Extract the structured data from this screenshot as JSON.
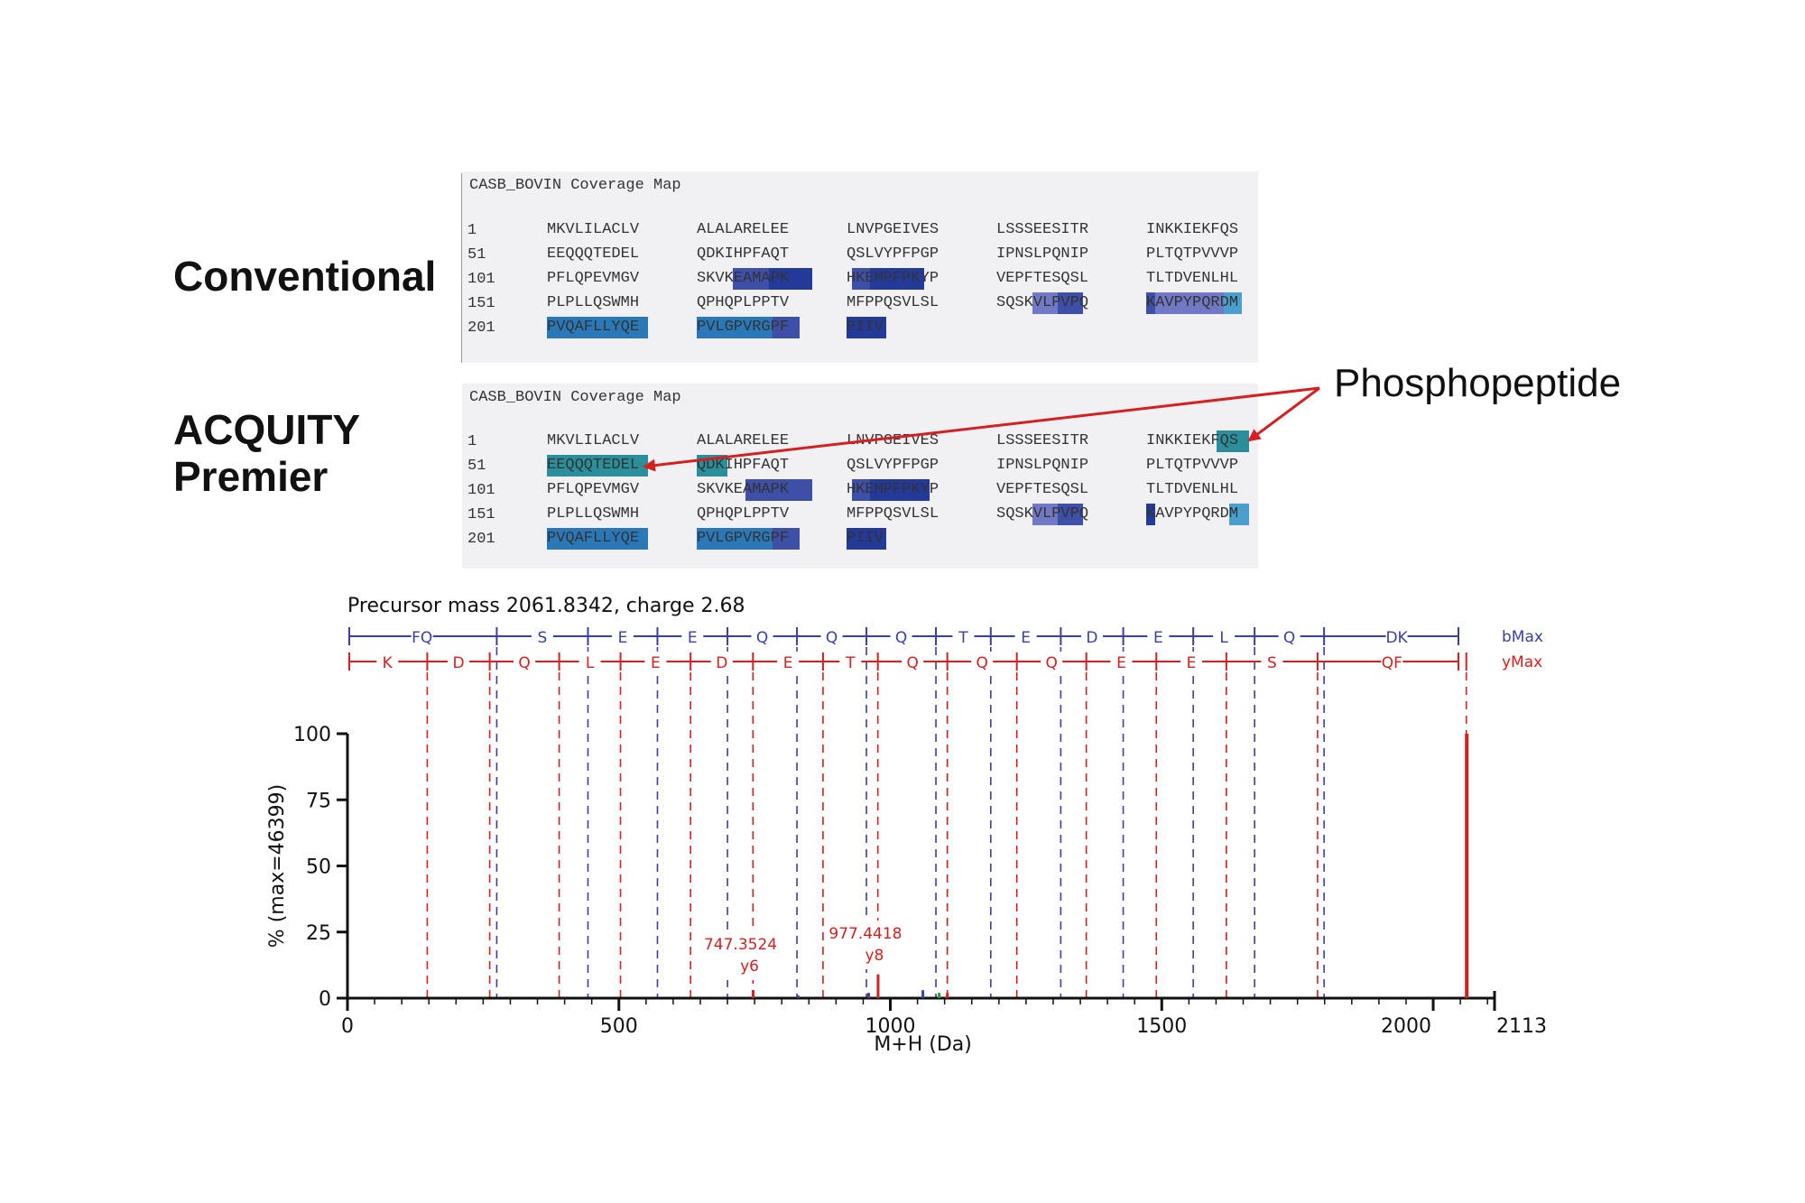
{
  "labels": {
    "conventional": "Conventional",
    "acquity_line1": "ACQUITY",
    "acquity_line2": "Premier",
    "phosphopeptide": "Phosphopeptide"
  },
  "coverage_maps": [
    {
      "title": "CASB_BOVIN Coverage Map",
      "rows": [
        {
          "num": "1",
          "segs": [
            "MKVLILACLV",
            "ALALARELEE",
            "LNVPGEIVES",
            "LSSSEESITR",
            "INKKIEKFQS"
          ]
        },
        {
          "num": "51",
          "segs": [
            "EEQQQTEDEL",
            "QDKIHPFAQT",
            "QSLVYPFPGP",
            "IPNSLPQNIP",
            "PLTQTPVVVP"
          ]
        },
        {
          "num": "101",
          "segs": [
            "PFLQPEVMGV",
            "SKVKEAMAPK",
            "HKEMPFPKYP",
            "VEPFTESQSL",
            "TLTDVENLHL"
          ]
        },
        {
          "num": "151",
          "segs": [
            "PLPLLQSWMH",
            "QPHQPLPPTV",
            "MFPPQSVLSL",
            "SQSKVLPVPQ",
            "KAVPYPQRDM"
          ]
        },
        {
          "num": "201",
          "segs": [
            "PVQAFLLYQE",
            "PVLGPVRGPF",
            "PIIV",
            "",
            ""
          ]
        }
      ]
    },
    {
      "title": "CASB_BOVIN Coverage Map",
      "rows": [
        {
          "num": "1",
          "segs": [
            "MKVLILACLV",
            "ALALARELEE",
            "LNVPGEIVES",
            "LSSSEESITR",
            "INKKIEKFQS"
          ]
        },
        {
          "num": "51",
          "segs": [
            "EEQQQTEDEL",
            "QDKIHPFAQT",
            "QSLVYPFPGP",
            "IPNSLPQNIP",
            "PLTQTPVVVP"
          ]
        },
        {
          "num": "101",
          "segs": [
            "PFLQPEVMGV",
            "SKVKEAMAPK",
            "HKEMPFPKYP",
            "VEPFTESQSL",
            "TLTDVENLHL"
          ]
        },
        {
          "num": "151",
          "segs": [
            "PLPLLQSWMH",
            "QPHQPLPPTV",
            "MFPPQSVLSL",
            "SQSKVLPVPQ",
            "KAVPYPQRDM"
          ]
        },
        {
          "num": "201",
          "segs": [
            "PVQAFLLYQE",
            "PVLGPVRGPF",
            "PIIV",
            "",
            ""
          ]
        }
      ]
    }
  ],
  "chart_data": {
    "type": "bar",
    "title": "Precursor mass 2061.8342, charge 2.68",
    "xlabel": "M+H (Da)",
    "ylabel": "% (max=46399)",
    "xlim": [
      0,
      2113
    ],
    "ylim": [
      0,
      100
    ],
    "x_ticks": [
      0,
      500,
      1000,
      1500,
      2000,
      2113
    ],
    "y_ticks": [
      0,
      25,
      50,
      75,
      100
    ],
    "b_ion_row": {
      "label": "bMax",
      "color": "#3a3fa0",
      "residues": [
        "FQ",
        "S",
        "E",
        "E",
        "Q",
        "Q",
        "Q",
        "T",
        "E",
        "D",
        "E",
        "L",
        "Q",
        "DK"
      ],
      "breaks": [
        275,
        443,
        571,
        700,
        828,
        956,
        1084,
        1185,
        1314,
        1429,
        1558,
        1671,
        1799
      ]
    },
    "y_ion_row": {
      "label": "yMax",
      "color": "#d42020",
      "residues": [
        "K",
        "D",
        "Q",
        "L",
        "E",
        "D",
        "E",
        "T",
        "Q",
        "Q",
        "Q",
        "E",
        "E",
        "S",
        "QF"
      ],
      "breaks": [
        147,
        262,
        390,
        503,
        632,
        747,
        876,
        977,
        1105,
        1233,
        1361,
        1490,
        1619,
        1787,
        2061
      ]
    },
    "peaks": [
      {
        "x": 2061.83,
        "y": 100,
        "color": "#d42020"
      },
      {
        "x": 977.44,
        "y": 9,
        "color": "#d42020"
      },
      {
        "x": 747.35,
        "y": 3,
        "color": "#d42020"
      },
      {
        "x": 960,
        "y": 2,
        "color": "#3a3fa0"
      },
      {
        "x": 1060,
        "y": 3,
        "color": "#3a3fa0"
      },
      {
        "x": 1090,
        "y": 2,
        "color": "#2a9a2a"
      },
      {
        "x": 1105,
        "y": 2,
        "color": "#d42020"
      },
      {
        "x": 830,
        "y": 1,
        "color": "#3a3fa0"
      }
    ],
    "annotations": [
      {
        "x": 747.35,
        "mz": "747.3524",
        "ion": "y6"
      },
      {
        "x": 977.44,
        "mz": "977.4418",
        "ion": "y8"
      }
    ]
  }
}
